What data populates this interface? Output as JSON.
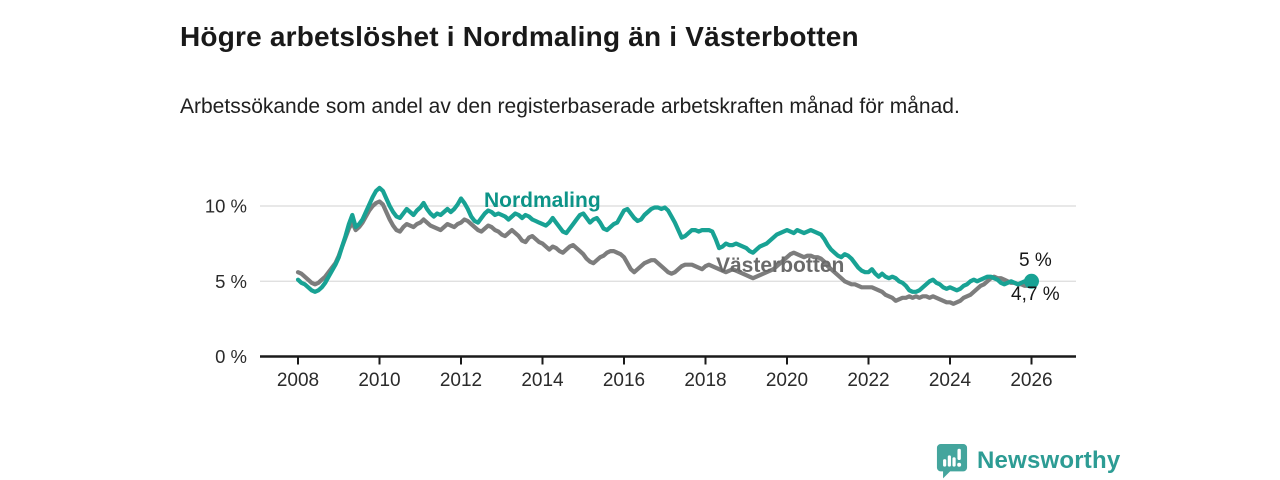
{
  "header": {
    "title": "Högre arbetslöshet i Nordmaling än i Västerbotten",
    "subtitle": "Arbetssökande som andel av den registerbaserade arbetskraften månad för månad."
  },
  "chart_data": {
    "type": "line",
    "title": "Högre arbetslöshet i Nordmaling än i Västerbotten",
    "subtitle": "Arbetssökande som andel av den registerbaserade arbetskraften månad för månad.",
    "unit": "%",
    "x_start_year": 2008,
    "x_end_year": 2026,
    "x_step_months": 1,
    "x_ticks": [
      2008,
      2010,
      2012,
      2014,
      2016,
      2018,
      2020,
      2022,
      2024,
      2026
    ],
    "x_tick_labels": [
      "2008",
      "2010",
      "2012",
      "2014",
      "2016",
      "2018",
      "2020",
      "2022",
      "2024",
      "2026"
    ],
    "y_ticks": [
      0,
      5,
      10
    ],
    "y_tick_labels": [
      "0 %",
      "5 %",
      "10 %"
    ],
    "ylim": [
      0,
      11.8
    ],
    "grid": true,
    "legend_position": "inline-labels",
    "colors": {
      "nordmaling_line": "#18a294",
      "nordmaling_label": "#0d9488",
      "vasterbotten_line": "#7d7d7d",
      "vasterbotten_label": "#6a6a6a",
      "gridline": "#dbdbdb",
      "axis": "#1a1a1a",
      "axis_text": "#2b2b2b"
    },
    "series": [
      {
        "name": "Nordmaling",
        "color": "#18a294",
        "end_value_label": "5 %",
        "values": [
          5.1,
          4.9,
          4.8,
          4.6,
          4.4,
          4.3,
          4.4,
          4.6,
          4.9,
          5.3,
          5.7,
          6.1,
          6.6,
          7.3,
          8.0,
          8.8,
          9.4,
          8.6,
          8.8,
          9.1,
          9.6,
          10.1,
          10.6,
          11.0,
          11.2,
          11.0,
          10.5,
          10.0,
          9.6,
          9.3,
          9.2,
          9.5,
          9.8,
          9.6,
          9.4,
          9.7,
          9.9,
          10.2,
          9.8,
          9.5,
          9.3,
          9.5,
          9.4,
          9.6,
          9.8,
          9.6,
          9.8,
          10.1,
          10.5,
          10.2,
          9.8,
          9.3,
          9.0,
          8.9,
          9.2,
          9.5,
          9.7,
          9.6,
          9.4,
          9.5,
          9.4,
          9.3,
          9.1,
          9.3,
          9.5,
          9.4,
          9.2,
          9.4,
          9.3,
          9.1,
          9.0,
          8.9,
          8.8,
          8.7,
          8.9,
          9.2,
          8.9,
          8.6,
          8.3,
          8.2,
          8.5,
          8.8,
          9.1,
          9.4,
          9.5,
          9.2,
          8.9,
          9.1,
          9.2,
          8.9,
          8.5,
          8.4,
          8.6,
          8.8,
          8.9,
          9.3,
          9.7,
          9.8,
          9.5,
          9.2,
          9.0,
          9.1,
          9.4,
          9.6,
          9.8,
          9.9,
          9.9,
          9.8,
          9.9,
          9.7,
          9.3,
          8.9,
          8.4,
          7.9,
          8.0,
          8.2,
          8.4,
          8.4,
          8.3,
          8.4,
          8.4,
          8.4,
          8.3,
          7.8,
          7.2,
          7.3,
          7.5,
          7.4,
          7.4,
          7.5,
          7.4,
          7.3,
          7.2,
          7.0,
          6.9,
          7.1,
          7.3,
          7.4,
          7.5,
          7.7,
          7.9,
          8.1,
          8.2,
          8.3,
          8.4,
          8.3,
          8.2,
          8.4,
          8.3,
          8.2,
          8.3,
          8.4,
          8.3,
          8.2,
          8.1,
          7.8,
          7.4,
          7.1,
          6.9,
          6.7,
          6.6,
          6.8,
          6.7,
          6.5,
          6.2,
          5.9,
          5.7,
          5.6,
          5.6,
          5.8,
          5.5,
          5.3,
          5.5,
          5.3,
          5.2,
          5.3,
          5.2,
          5.0,
          4.9,
          4.7,
          4.4,
          4.3,
          4.3,
          4.4,
          4.6,
          4.8,
          5.0,
          5.1,
          4.9,
          4.8,
          4.6,
          4.5,
          4.6,
          4.5,
          4.4,
          4.5,
          4.7,
          4.8,
          5.0,
          5.1,
          5.0,
          5.1,
          5.2,
          5.3,
          5.3,
          5.2,
          5.1,
          4.9,
          4.8,
          4.9,
          5.0,
          4.9,
          4.8,
          4.9,
          5.0,
          5.0,
          5.0
        ]
      },
      {
        "name": "Västerbotten",
        "color": "#7d7d7d",
        "end_value_label": "4,7 %",
        "values": [
          5.6,
          5.5,
          5.3,
          5.1,
          4.9,
          4.8,
          4.9,
          5.1,
          5.3,
          5.6,
          5.9,
          6.2,
          6.7,
          7.3,
          7.9,
          8.5,
          8.9,
          8.4,
          8.6,
          8.9,
          9.3,
          9.7,
          10.0,
          10.2,
          10.3,
          10.1,
          9.6,
          9.1,
          8.7,
          8.4,
          8.3,
          8.6,
          8.8,
          8.7,
          8.6,
          8.8,
          8.9,
          9.1,
          8.9,
          8.7,
          8.6,
          8.5,
          8.4,
          8.6,
          8.8,
          8.7,
          8.6,
          8.8,
          8.9,
          9.1,
          9.0,
          8.8,
          8.6,
          8.4,
          8.3,
          8.5,
          8.7,
          8.6,
          8.4,
          8.3,
          8.1,
          8.0,
          8.2,
          8.4,
          8.2,
          8.0,
          7.7,
          7.6,
          7.9,
          8.0,
          7.8,
          7.6,
          7.5,
          7.3,
          7.1,
          7.3,
          7.2,
          7.0,
          6.9,
          7.1,
          7.3,
          7.4,
          7.2,
          7.0,
          6.8,
          6.5,
          6.3,
          6.2,
          6.4,
          6.6,
          6.7,
          6.9,
          7.0,
          7.0,
          6.9,
          6.8,
          6.6,
          6.2,
          5.8,
          5.6,
          5.8,
          6.0,
          6.2,
          6.3,
          6.4,
          6.4,
          6.2,
          6.0,
          5.8,
          5.6,
          5.5,
          5.6,
          5.8,
          6.0,
          6.1,
          6.1,
          6.1,
          6.0,
          5.9,
          5.8,
          6.0,
          6.1,
          6.0,
          5.9,
          5.8,
          5.7,
          5.6,
          5.7,
          5.8,
          5.7,
          5.6,
          5.5,
          5.4,
          5.3,
          5.2,
          5.3,
          5.4,
          5.5,
          5.6,
          5.7,
          5.8,
          6.0,
          6.2,
          6.4,
          6.6,
          6.8,
          6.9,
          6.8,
          6.7,
          6.6,
          6.7,
          6.7,
          6.6,
          6.6,
          6.5,
          6.3,
          6.0,
          5.8,
          5.6,
          5.4,
          5.2,
          5.0,
          4.9,
          4.8,
          4.8,
          4.7,
          4.6,
          4.6,
          4.6,
          4.6,
          4.5,
          4.4,
          4.3,
          4.1,
          4.0,
          3.9,
          3.7,
          3.8,
          3.9,
          3.9,
          4.0,
          3.9,
          4.0,
          3.9,
          4.0,
          4.0,
          3.9,
          4.0,
          3.9,
          3.8,
          3.7,
          3.6,
          3.6,
          3.5,
          3.6,
          3.7,
          3.9,
          4.0,
          4.1,
          4.3,
          4.5,
          4.7,
          4.8,
          5.0,
          5.2,
          5.3,
          5.2,
          5.2,
          5.1,
          5.0,
          4.9,
          4.9,
          4.8,
          4.8,
          4.7,
          4.7,
          4.7
        ]
      }
    ],
    "end_labels": {
      "nordmaling": "5 %",
      "vasterbotten": "4,7 %"
    }
  },
  "footer": {
    "brand": "Newsworthy",
    "brand_color": "#2d9c94",
    "logo_icon": "bar-chart-speech-bubble-icon"
  }
}
